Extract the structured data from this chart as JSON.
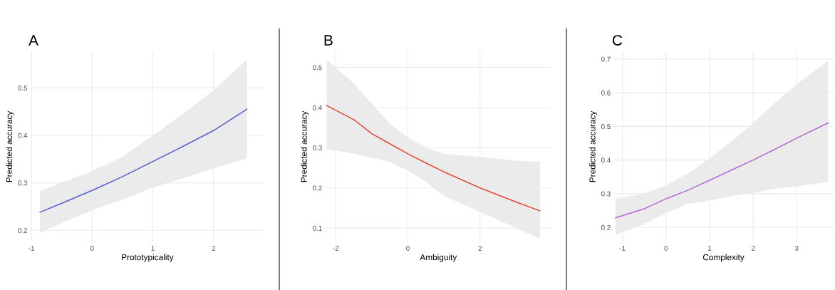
{
  "chart_data": [
    {
      "type": "line",
      "title": "A",
      "xlabel": "Prototypicality",
      "ylabel": "Predicted accuracy",
      "xlim": [
        -1.01,
        2.83
      ],
      "xticks": [
        -1,
        0,
        1,
        2
      ],
      "ylim": [
        0.175,
        0.577
      ],
      "yticks": [
        0.2,
        0.3,
        0.4,
        0.5
      ],
      "grid": true,
      "series": [
        {
          "color": "#4f5fd0",
          "x": [
            -0.86,
            -0.5,
            0,
            0.5,
            1,
            1.5,
            2,
            2.55
          ],
          "values": [
            0.238,
            0.257,
            0.284,
            0.313,
            0.345,
            0.377,
            0.41,
            0.455
          ],
          "lower": [
            0.195,
            0.215,
            0.242,
            0.265,
            0.29,
            0.31,
            0.33,
            0.352
          ],
          "upper": [
            0.283,
            0.3,
            0.325,
            0.355,
            0.4,
            0.445,
            0.495,
            0.56
          ]
        }
      ]
    },
    {
      "type": "line",
      "title": "B",
      "xlabel": "Ambiguity",
      "ylabel": "Predicted accuracy",
      "xlim": [
        -2.28,
        3.97
      ],
      "xticks": [
        -2,
        0,
        2
      ],
      "ylim": [
        0.065,
        0.54
      ],
      "yticks": [
        0.1,
        0.2,
        0.3,
        0.4,
        0.5
      ],
      "grid": true,
      "series": [
        {
          "color": "#e0483c",
          "x": [
            -2.25,
            -1.5,
            -1,
            -0.5,
            0,
            0.5,
            1,
            2,
            3,
            3.66
          ],
          "values": [
            0.405,
            0.37,
            0.335,
            0.31,
            0.285,
            0.262,
            0.24,
            0.2,
            0.165,
            0.143
          ],
          "lower": [
            0.297,
            0.285,
            0.275,
            0.265,
            0.243,
            0.215,
            0.18,
            0.14,
            0.1,
            0.073
          ],
          "upper": [
            0.52,
            0.46,
            0.41,
            0.36,
            0.325,
            0.3,
            0.285,
            0.277,
            0.268,
            0.265
          ]
        }
      ]
    },
    {
      "type": "line",
      "title": "C",
      "xlabel": "Complexity",
      "ylabel": "Predicted accuracy",
      "xlim": [
        -1.19,
        3.83
      ],
      "xticks": [
        -1,
        0,
        1,
        2,
        3
      ],
      "ylim": [
        0.156,
        0.723
      ],
      "yticks": [
        0.2,
        0.3,
        0.4,
        0.5,
        0.6,
        0.7
      ],
      "grid": true,
      "series": [
        {
          "color": "#b566d8",
          "x": [
            -1.16,
            -0.5,
            0,
            0.5,
            1,
            1.5,
            2,
            2.5,
            3,
            3.72
          ],
          "values": [
            0.228,
            0.255,
            0.285,
            0.31,
            0.34,
            0.37,
            0.4,
            0.432,
            0.465,
            0.51
          ],
          "lower": [
            0.177,
            0.21,
            0.242,
            0.27,
            0.28,
            0.292,
            0.303,
            0.315,
            0.322,
            0.335
          ],
          "upper": [
            0.285,
            0.3,
            0.325,
            0.36,
            0.405,
            0.455,
            0.51,
            0.57,
            0.625,
            0.695
          ]
        }
      ]
    }
  ]
}
